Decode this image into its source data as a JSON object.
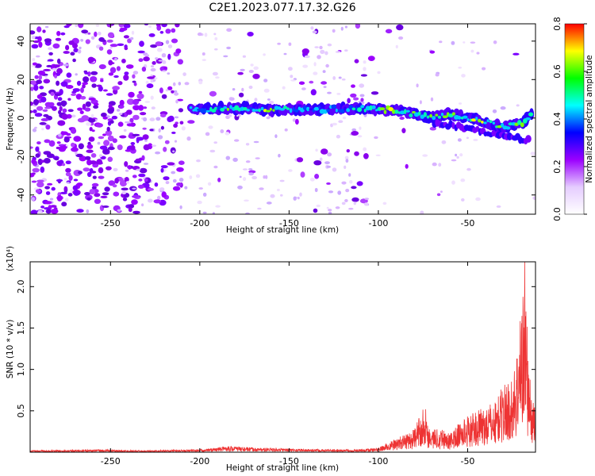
{
  "title": "C2E1.2023.077.17.32.G26",
  "chart_data": [
    {
      "type": "heatmap",
      "xlabel": "Height of straight line (km)",
      "ylabel": "Frequency (Hz)",
      "xlim": [
        -295,
        -12
      ],
      "ylim": [
        -50,
        49
      ],
      "xticks": [
        -250,
        -200,
        -150,
        -100,
        -50
      ],
      "yticks": [
        -40,
        -20,
        0,
        20,
        40
      ],
      "colorbar": {
        "label": "Normalized spectral amplitude",
        "range": [
          0.0,
          0.8
        ],
        "ticks": [
          "0.0",
          "0.2",
          "0.4",
          "0.6",
          "0.8"
        ],
        "colormap": [
          "#ffffff",
          "#e5ccff",
          "#9b00ff",
          "#0000ff",
          "#00ffff",
          "#00ff00",
          "#ffff00",
          "#ff0000"
        ]
      },
      "signal_band": {
        "segments": [
          {
            "x": -205,
            "y": 4.5,
            "amp": 0.42
          },
          {
            "x": -190,
            "y": 4.8,
            "amp": 0.45
          },
          {
            "x": -175,
            "y": 5.0,
            "amp": 0.5
          },
          {
            "x": -160,
            "y": 4.5,
            "amp": 0.55
          },
          {
            "x": -145,
            "y": 4.5,
            "amp": 0.35
          },
          {
            "x": -130,
            "y": 4.5,
            "amp": 0.35
          },
          {
            "x": -115,
            "y": 5.0,
            "amp": 0.35
          },
          {
            "x": -100,
            "y": 4.5,
            "amp": 0.45
          },
          {
            "x": -90,
            "y": 4.0,
            "amp": 0.6
          },
          {
            "x": -80,
            "y": 2.0,
            "amp": 0.65
          },
          {
            "x": -70,
            "y": 0.5,
            "amp": 0.5
          },
          {
            "x": -60,
            "y": 2.0,
            "amp": 0.55
          },
          {
            "x": -50,
            "y": 0.0,
            "amp": 0.6
          },
          {
            "x": -40,
            "y": -2.0,
            "amp": 0.55
          },
          {
            "x": -30,
            "y": -5.0,
            "amp": 0.5
          },
          {
            "x": -20,
            "y": -3.0,
            "amp": 0.55
          },
          {
            "x": -14,
            "y": 2.0,
            "amp": 0.5
          }
        ]
      }
    },
    {
      "type": "line",
      "xlabel": "Height of straight line (km)",
      "ylabel": "SNR (10 * v/v)",
      "y_multiplier": "(x10⁴)",
      "xlim": [
        -295,
        -12
      ],
      "ylim": [
        0,
        2.3
      ],
      "xticks": [
        -250,
        -200,
        -150,
        -100,
        -50
      ],
      "yticks": [
        0.5,
        1.0,
        1.5,
        2.0
      ],
      "series": [
        {
          "color": "#ee3333",
          "x": [
            -295,
            -260,
            -230,
            -200,
            -190,
            -185,
            -170,
            -150,
            -130,
            -110,
            -100,
            -95,
            -90,
            -85,
            -80,
            -76,
            -74,
            -72,
            -70,
            -65,
            -60,
            -55,
            -50,
            -45,
            -40,
            -35,
            -30,
            -25,
            -22,
            -20,
            -18,
            -16,
            -14,
            -12
          ],
          "y": [
            0.02,
            0.03,
            0.02,
            0.03,
            0.05,
            0.07,
            0.05,
            0.04,
            0.03,
            0.03,
            0.05,
            0.1,
            0.15,
            0.2,
            0.25,
            0.45,
            0.55,
            0.3,
            0.25,
            0.28,
            0.2,
            0.32,
            0.4,
            0.45,
            0.5,
            0.55,
            0.75,
            0.8,
            1.2,
            1.6,
            2.25,
            1.0,
            0.6,
            0.5
          ]
        }
      ]
    }
  ]
}
